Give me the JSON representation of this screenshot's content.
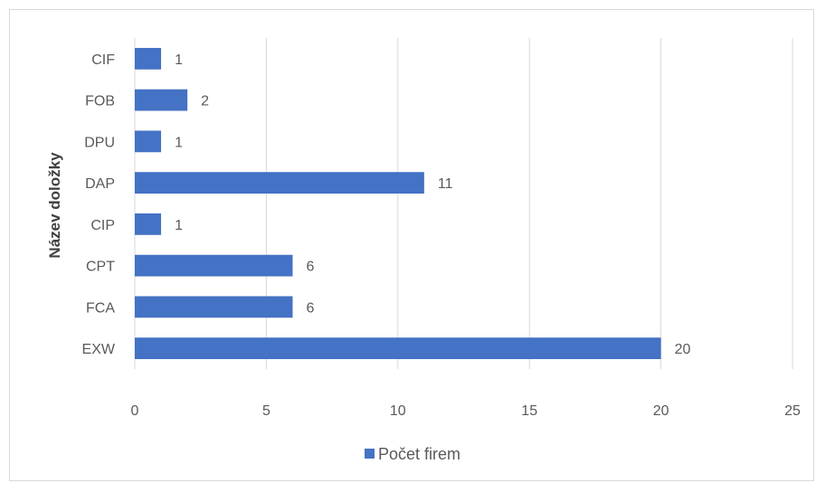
{
  "chart_data": {
    "type": "bar",
    "orientation": "horizontal",
    "categories": [
      "EXW",
      "FCA",
      "CPT",
      "CIP",
      "DAP",
      "DPU",
      "FOB",
      "CIF"
    ],
    "series": [
      {
        "name": "Počet firem",
        "values": [
          20,
          6,
          6,
          1,
          11,
          1,
          2,
          1
        ],
        "color": "#4472c4"
      }
    ],
    "xlim": [
      0,
      25
    ],
    "xticks": [
      "0",
      "5",
      "10",
      "15",
      "20",
      "25"
    ],
    "ylabel": "Název doložky",
    "xlabel": "",
    "grid": true,
    "legend_position": "bottom"
  }
}
